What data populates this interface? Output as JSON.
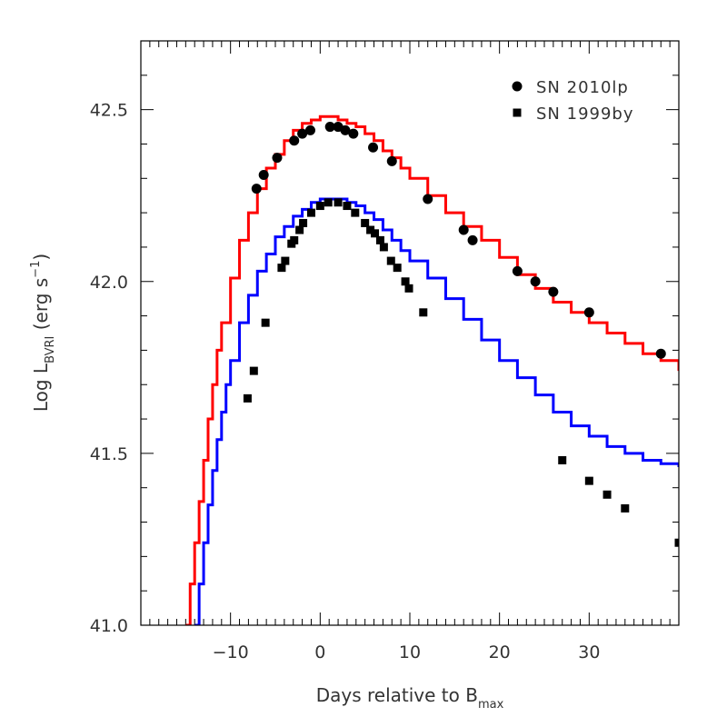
{
  "chart_data": {
    "type": "scatter",
    "xlabel": {
      "main": "Days relative to B",
      "sub": "max"
    },
    "ylabel": {
      "main": "Log L",
      "sub": "BVRI",
      "unit_pre": " (erg s",
      "sup": "−1",
      "unit_post": ")"
    },
    "xlim": [
      -20,
      40
    ],
    "ylim": [
      41.0,
      42.7
    ],
    "x_ticks": [
      -10,
      0,
      10,
      20,
      30
    ],
    "x_tick_labels": [
      "−10",
      "0",
      "10",
      "20",
      "30"
    ],
    "y_ticks": [
      41.0,
      41.5,
      42.0,
      42.5
    ],
    "y_tick_labels": [
      "41.0",
      "41.5",
      "42.0",
      "42.5"
    ],
    "grid": false,
    "legend_position": "top-right",
    "series": [
      {
        "name": "SN 2010lp",
        "marker": "circle",
        "color": "#000000",
        "x": [
          -7.1,
          -6.3,
          -4.8,
          -2.9,
          -2.0,
          -1.1,
          1.1,
          2.0,
          2.8,
          3.7,
          5.9,
          8.0,
          12.0,
          16.0,
          17.0,
          22.0,
          24.0,
          26.0,
          30.0,
          38.0
        ],
        "y": [
          42.27,
          42.31,
          42.36,
          42.41,
          42.43,
          42.44,
          42.45,
          42.45,
          42.44,
          42.43,
          42.39,
          42.35,
          42.24,
          42.15,
          42.12,
          42.03,
          42.0,
          41.97,
          41.91,
          41.79
        ]
      },
      {
        "name": "SN 1999by",
        "marker": "square",
        "color": "#000000",
        "x": [
          -8.1,
          -7.4,
          -6.1,
          -4.3,
          -3.9,
          -3.2,
          -2.9,
          -2.3,
          -1.9,
          -1.0,
          0.0,
          0.9,
          2.0,
          3.0,
          3.9,
          5.0,
          5.6,
          6.1,
          6.7,
          7.1,
          7.9,
          8.6,
          9.5,
          9.9,
          11.5,
          27.0,
          30.0,
          32.0,
          34.0,
          40.0
        ],
        "y": [
          41.66,
          41.74,
          41.88,
          42.04,
          42.06,
          42.11,
          42.12,
          42.15,
          42.17,
          42.2,
          42.22,
          42.23,
          42.23,
          42.22,
          42.2,
          42.17,
          42.15,
          42.14,
          42.12,
          42.1,
          42.06,
          42.04,
          42.0,
          41.98,
          41.91,
          41.48,
          41.42,
          41.38,
          41.34,
          41.24
        ]
      },
      {
        "name": "",
        "line": "step",
        "color": "#ff0000",
        "x": [
          -15,
          -14.5,
          -14,
          -13.5,
          -13,
          -12.5,
          -12,
          -11.5,
          -11,
          -10,
          -9,
          -8,
          -7,
          -6,
          -5,
          -4,
          -3,
          -2,
          -1,
          0,
          1,
          2,
          3,
          4,
          5,
          6,
          7,
          8,
          9,
          10,
          12,
          14,
          16,
          18,
          20,
          22,
          24,
          26,
          28,
          30,
          32,
          34,
          36,
          38,
          40
        ],
        "y": [
          41.0,
          41.12,
          41.24,
          41.36,
          41.48,
          41.6,
          41.7,
          41.8,
          41.88,
          42.01,
          42.12,
          42.2,
          42.27,
          42.33,
          42.37,
          42.41,
          42.44,
          42.46,
          42.47,
          42.48,
          42.48,
          42.47,
          42.46,
          42.45,
          42.43,
          42.41,
          42.38,
          42.36,
          42.33,
          42.3,
          42.25,
          42.2,
          42.16,
          42.12,
          42.07,
          42.02,
          41.98,
          41.94,
          41.91,
          41.88,
          41.85,
          41.82,
          41.79,
          41.77,
          41.74
        ]
      },
      {
        "name": "",
        "line": "step",
        "color": "#0000ff",
        "x": [
          -14,
          -13.5,
          -13,
          -12.5,
          -12,
          -11.5,
          -11,
          -10.5,
          -10,
          -9,
          -8,
          -7,
          -6,
          -5,
          -4,
          -3,
          -2,
          -1,
          0,
          1,
          2,
          3,
          4,
          5,
          6,
          7,
          8,
          9,
          10,
          12,
          14,
          16,
          18,
          20,
          22,
          24,
          26,
          28,
          30,
          32,
          34,
          36,
          38,
          40
        ],
        "y": [
          41.0,
          41.12,
          41.24,
          41.35,
          41.45,
          41.54,
          41.62,
          41.7,
          41.77,
          41.88,
          41.96,
          42.03,
          42.08,
          42.13,
          42.16,
          42.19,
          42.21,
          42.23,
          42.24,
          42.24,
          42.24,
          42.23,
          42.22,
          42.2,
          42.18,
          42.15,
          42.12,
          42.09,
          42.06,
          42.01,
          41.95,
          41.89,
          41.83,
          41.77,
          41.72,
          41.67,
          41.62,
          41.58,
          41.55,
          41.52,
          41.5,
          41.48,
          41.47,
          41.46
        ]
      }
    ]
  }
}
